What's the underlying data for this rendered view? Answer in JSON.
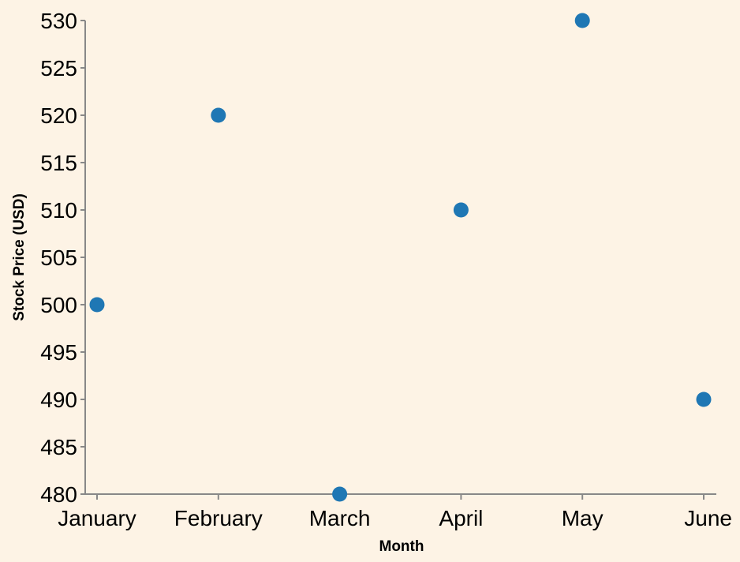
{
  "chart_data": {
    "type": "scatter",
    "title": "",
    "xlabel": "Month",
    "ylabel": "Stock Price (USD)",
    "categories": [
      "January",
      "February",
      "March",
      "April",
      "May",
      "June"
    ],
    "values": [
      500,
      520,
      480,
      510,
      530,
      490
    ],
    "ylim": [
      480,
      530
    ],
    "yticks": [
      480,
      485,
      490,
      495,
      500,
      505,
      510,
      515,
      520,
      525,
      530
    ],
    "grid": false,
    "legend": "none",
    "colors": {
      "point": "#1f77b4",
      "axis": "#888888",
      "background": "#fdf3e5"
    }
  }
}
